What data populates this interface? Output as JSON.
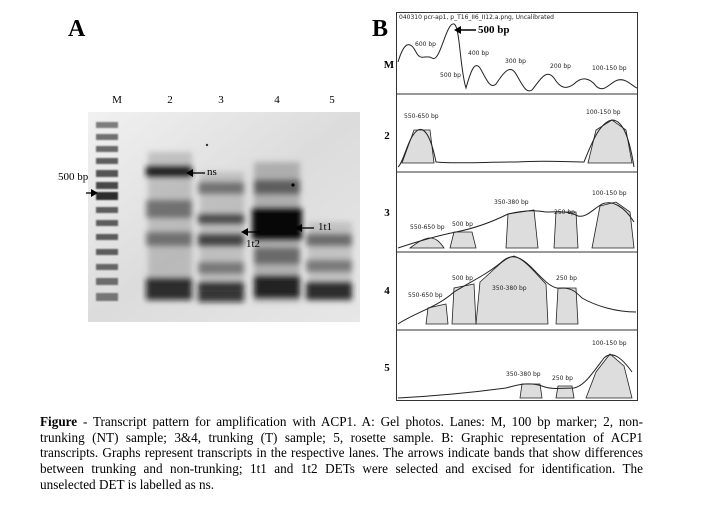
{
  "panel_a": {
    "letter": "A",
    "lanes": [
      "M",
      "2",
      "3",
      "4",
      "5"
    ],
    "marker_label": "500 bp",
    "annotations": {
      "ns": "ns",
      "lt1": "1t1",
      "lt2": "1t2"
    }
  },
  "panel_b": {
    "letter": "B",
    "header": "040310 pcr-ap1, p_T16_II6_II12.a.png, Uncalibrated",
    "top_row_label": "M",
    "top_arrow_label": "500 bp",
    "marker_bands": [
      "600 bp",
      "500 bp",
      "400 bp",
      "300 bp",
      "200 bp",
      "100-150 bp"
    ],
    "rows": [
      {
        "label": "2",
        "bands": [
          "550-650 bp",
          "100-150 bp"
        ]
      },
      {
        "label": "3",
        "bands": [
          "550-650 bp",
          "500 bp",
          "350-380 bp",
          "250 bp",
          "100-150 bp"
        ]
      },
      {
        "label": "4",
        "bands": [
          "550-650 bp",
          "500 bp",
          "350-380 bp",
          "250 bp"
        ]
      },
      {
        "label": "5",
        "bands": [
          "350-380 bp",
          "250 bp",
          "100-150 bp"
        ]
      }
    ]
  },
  "caption": {
    "label": "Figure",
    "text": " - Transcript pattern for amplification with ACP1. A: Gel photos. Lanes: M, 100 bp marker; 2, non-trunking (NT) sample; 3&4, trunking (T) sample; 5, rosette sample. B: Graphic representation of ACP1 transcripts. Graphs represent transcripts in the respective lanes. The arrows indicate bands that show differences between trunking and non-trunking; 1t1 and 1t2 DETs were selected and excised for identification. The unselected DET is labelled as ns."
  }
}
